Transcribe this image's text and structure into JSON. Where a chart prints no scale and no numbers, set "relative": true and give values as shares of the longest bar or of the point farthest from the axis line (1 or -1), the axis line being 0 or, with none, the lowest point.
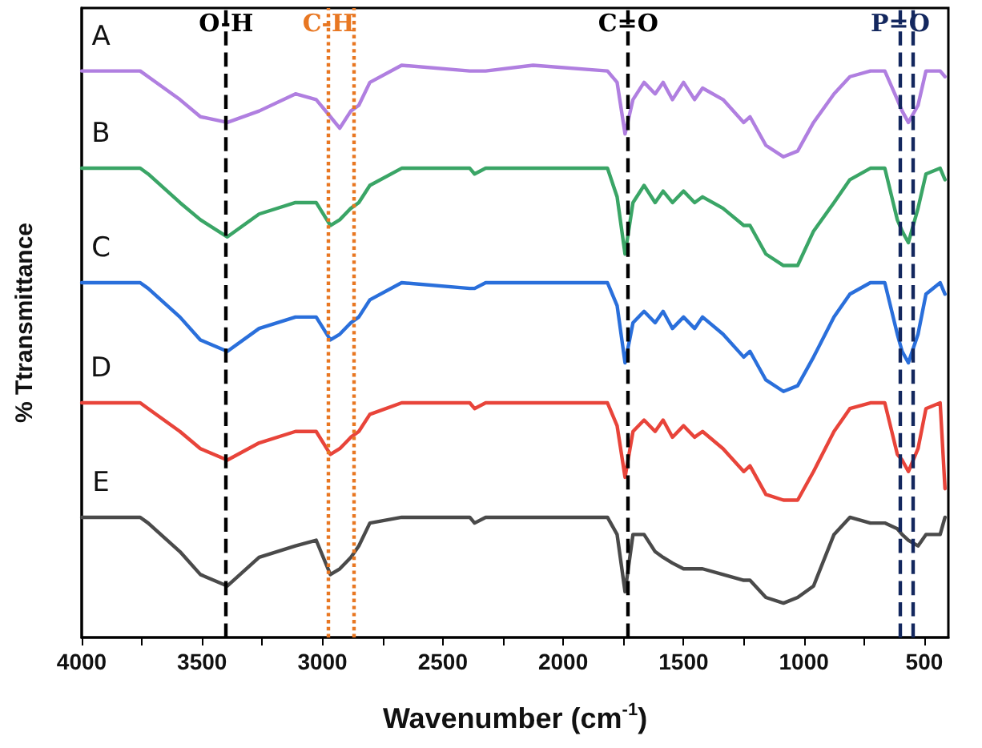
{
  "chart_data": {
    "type": "line",
    "relative": true,
    "xlabel": "Wavenumber (cm$^{-1}$)",
    "ylabel": "% Ttransmittance",
    "x": [
      4000,
      3757,
      3724,
      3592,
      3507,
      3395,
      3263,
      3112,
      3026,
      2967,
      2928,
      2882,
      2849,
      2803,
      2671,
      2388,
      2368,
      2322,
      2125,
      1816,
      1776,
      1743,
      1710,
      1664,
      1618,
      1585,
      1546,
      1500,
      1454,
      1421,
      1336,
      1250,
      1224,
      1158,
      1085,
      1026,
      960,
      875,
      809,
      724,
      664,
      612,
      592,
      566,
      526,
      493,
      434,
      414
    ],
    "xlim": [
      4000,
      400
    ],
    "xticks": [
      4000,
      {
        "value": 3750,
        "label": null
      },
      3500,
      {
        "value": 3250,
        "label": null
      },
      3000,
      {
        "value": 2750,
        "label": null
      },
      2500,
      {
        "value": 2250,
        "label": null
      },
      2000,
      {
        "value": 1750,
        "label": null
      },
      1500,
      {
        "value": 1250,
        "label": null
      },
      1000,
      {
        "value": 750,
        "label": null
      },
      500
    ],
    "series": [
      {
        "name": "A",
        "color": "#b07fe0",
        "values": [
          0.99,
          0.99,
          0.98,
          0.94,
          0.91,
          0.9,
          0.92,
          0.95,
          0.94,
          0.91,
          0.89,
          0.92,
          0.93,
          0.97,
          1,
          0.99,
          0.99,
          0.99,
          1,
          0.99,
          0.97,
          0.88,
          0.94,
          0.97,
          0.95,
          0.97,
          0.94,
          0.97,
          0.94,
          0.96,
          0.94,
          0.9,
          0.91,
          0.86,
          0.84,
          0.85,
          0.9,
          0.95,
          0.98,
          0.99,
          0.99,
          0.94,
          0.92,
          0.9,
          0.93,
          0.99,
          0.99,
          0.98
        ]
      },
      {
        "name": "B",
        "color": "#3aa566",
        "values": [
          0.82,
          0.82,
          0.81,
          0.76,
          0.73,
          0.7,
          0.74,
          0.76,
          0.76,
          0.72,
          0.73,
          0.75,
          0.76,
          0.79,
          0.82,
          0.82,
          0.81,
          0.82,
          0.82,
          0.82,
          0.77,
          0.67,
          0.76,
          0.79,
          0.76,
          0.78,
          0.76,
          0.78,
          0.76,
          0.77,
          0.75,
          0.72,
          0.72,
          0.67,
          0.65,
          0.65,
          0.71,
          0.76,
          0.8,
          0.82,
          0.82,
          0.73,
          0.71,
          0.69,
          0.75,
          0.81,
          0.82,
          0.8
        ]
      },
      {
        "name": "C",
        "color": "#2a6fdb",
        "values": [
          0.62,
          0.62,
          0.61,
          0.56,
          0.52,
          0.5,
          0.54,
          0.56,
          0.56,
          0.52,
          0.53,
          0.55,
          0.56,
          0.59,
          0.62,
          0.61,
          0.61,
          0.62,
          0.62,
          0.62,
          0.58,
          0.48,
          0.55,
          0.57,
          0.55,
          0.57,
          0.54,
          0.56,
          0.54,
          0.56,
          0.53,
          0.49,
          0.5,
          0.45,
          0.43,
          0.44,
          0.49,
          0.56,
          0.6,
          0.62,
          0.62,
          0.53,
          0.5,
          0.48,
          0.53,
          0.6,
          0.62,
          0.6
        ]
      },
      {
        "name": "D",
        "color": "#e8443a",
        "values": [
          0.41,
          0.41,
          0.4,
          0.36,
          0.33,
          0.31,
          0.34,
          0.36,
          0.36,
          0.32,
          0.33,
          0.35,
          0.36,
          0.39,
          0.41,
          0.41,
          0.4,
          0.41,
          0.41,
          0.41,
          0.37,
          0.28,
          0.36,
          0.38,
          0.36,
          0.38,
          0.35,
          0.37,
          0.35,
          0.36,
          0.33,
          0.29,
          0.3,
          0.25,
          0.24,
          0.24,
          0.29,
          0.36,
          0.4,
          0.41,
          0.41,
          0.32,
          0.31,
          0.29,
          0.33,
          0.4,
          0.41,
          0.26
        ]
      },
      {
        "name": "E",
        "color": "#4a4a4a",
        "values": [
          0.21,
          0.21,
          0.2,
          0.15,
          0.11,
          0.09,
          0.14,
          0.16,
          0.17,
          0.11,
          0.12,
          0.14,
          0.16,
          0.2,
          0.21,
          0.21,
          0.2,
          0.21,
          0.21,
          0.21,
          0.18,
          0.08,
          0.18,
          0.18,
          0.15,
          0.14,
          0.13,
          0.12,
          0.12,
          0.12,
          0.11,
          0.1,
          0.1,
          0.07,
          0.06,
          0.07,
          0.09,
          0.18,
          0.21,
          0.2,
          0.2,
          0.19,
          0.18,
          0.17,
          0.16,
          0.18,
          0.18,
          0.21
        ]
      }
    ],
    "ref_lines": [
      {
        "axis": "x",
        "value": 3400,
        "label": "O-H",
        "color": "#000000",
        "line_style": "dashed"
      },
      {
        "axis": "x",
        "value": 2975,
        "label": "C-H",
        "color": "#e87722",
        "line_style": "dotted"
      },
      {
        "axis": "x",
        "value": 2870,
        "label": null,
        "color": "#e87722",
        "line_style": "dotted"
      },
      {
        "axis": "x",
        "value": 1730,
        "label": "C=O",
        "color": "#000000",
        "line_style": "dashed"
      },
      {
        "axis": "x",
        "value": 600,
        "label": "P=O",
        "color": "#13275e",
        "line_style": "dashed"
      },
      {
        "axis": "x",
        "value": 545,
        "label": null,
        "color": "#13275e",
        "line_style": "dashed"
      }
    ],
    "grid": false,
    "legend": false,
    "marker": "none",
    "line_style": "solid"
  }
}
